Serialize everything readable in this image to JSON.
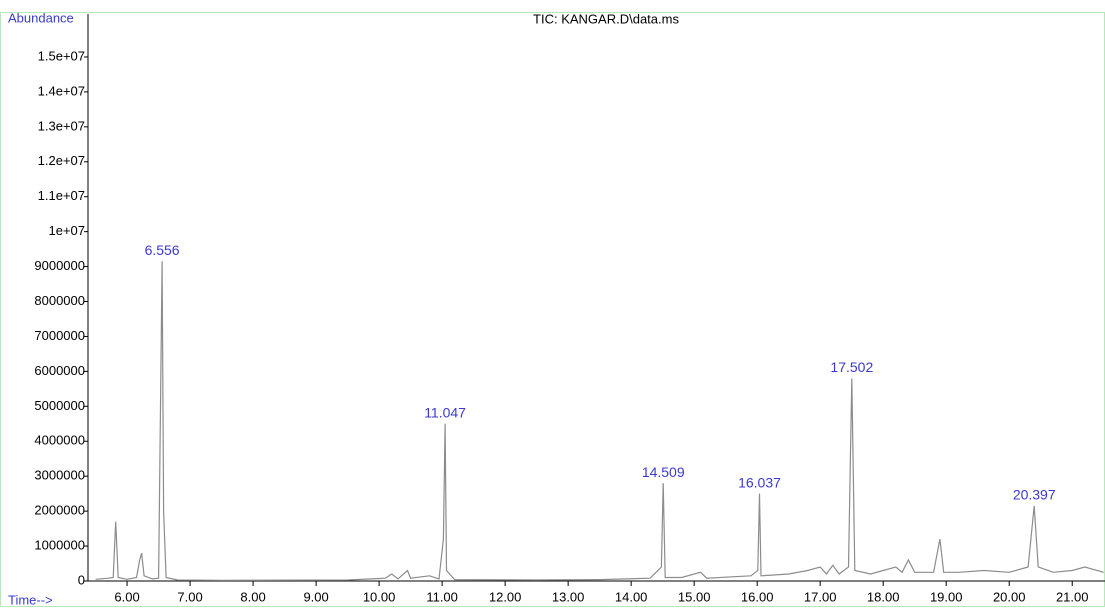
{
  "chart_data": {
    "type": "line",
    "title": "TIC: KANGAR.D\\data.ms",
    "y_label": "Abundance",
    "x_label": "Time-->",
    "color": "#8c8c8c",
    "x": [
      5.5,
      5.7,
      5.78,
      5.82,
      5.86,
      6.0,
      6.15,
      6.2,
      6.23,
      6.27,
      6.4,
      6.5,
      6.53,
      6.556,
      6.58,
      6.62,
      6.8,
      7.5,
      9.5,
      10.1,
      10.2,
      10.3,
      10.45,
      10.5,
      10.8,
      10.95,
      11.02,
      11.047,
      11.07,
      11.2,
      12.5,
      13.5,
      14.3,
      14.48,
      14.509,
      14.54,
      14.8,
      15.1,
      15.2,
      15.6,
      15.9,
      16.01,
      16.037,
      16.06,
      16.5,
      16.8,
      17.0,
      17.1,
      17.2,
      17.3,
      17.45,
      17.502,
      17.55,
      17.8,
      18.0,
      18.2,
      18.3,
      18.4,
      18.5,
      18.8,
      18.9,
      18.96,
      19.2,
      19.6,
      20.0,
      20.3,
      20.397,
      20.46,
      20.7,
      21.0,
      21.2,
      21.5
    ],
    "values": [
      50000,
      80000,
      100000,
      1700000,
      100000,
      50000,
      100000,
      600000,
      800000,
      150000,
      60000,
      80000,
      5000000,
      9150000,
      2000000,
      100000,
      30000,
      20000,
      30000,
      80000,
      200000,
      60000,
      300000,
      80000,
      150000,
      60000,
      1200000,
      4500000,
      300000,
      40000,
      30000,
      40000,
      80000,
      400000,
      2800000,
      100000,
      100000,
      250000,
      80000,
      120000,
      150000,
      300000,
      2500000,
      150000,
      200000,
      300000,
      400000,
      200000,
      450000,
      200000,
      400000,
      5800000,
      300000,
      200000,
      300000,
      400000,
      250000,
      600000,
      250000,
      250000,
      1200000,
      250000,
      250000,
      300000,
      250000,
      400000,
      2150000,
      400000,
      250000,
      300000,
      400000,
      250000
    ],
    "peaks": [
      {
        "x": 6.556,
        "y": 9150000
      },
      {
        "x": 11.047,
        "y": 4500000
      },
      {
        "x": 14.509,
        "y": 2800000
      },
      {
        "x": 16.037,
        "y": 2500000
      },
      {
        "x": 17.502,
        "y": 5800000
      },
      {
        "x": 20.397,
        "y": 2150000
      }
    ],
    "xlim": [
      5.38,
      21.52
    ],
    "ylim": [
      0,
      16230000
    ],
    "xticks": [
      {
        "value": 6,
        "label": "6.00"
      },
      {
        "value": 7,
        "label": "7.00"
      },
      {
        "value": 8,
        "label": "8.00"
      },
      {
        "value": 9,
        "label": "9.00"
      },
      {
        "value": 10,
        "label": "10.00"
      },
      {
        "value": 11,
        "label": "11.00"
      },
      {
        "value": 12,
        "label": "12.00"
      },
      {
        "value": 13,
        "label": "13.00"
      },
      {
        "value": 14,
        "label": "14.00"
      },
      {
        "value": 15,
        "label": "15.00"
      },
      {
        "value": 16,
        "label": "16.00"
      },
      {
        "value": 17,
        "label": "17.00"
      },
      {
        "value": 18,
        "label": "18.00"
      },
      {
        "value": 19,
        "label": "19.00"
      },
      {
        "value": 20,
        "label": "20.00"
      },
      {
        "value": 21,
        "label": "21.00"
      }
    ],
    "yticks": [
      0,
      1000000,
      2000000,
      3000000,
      4000000,
      5000000,
      6000000,
      7000000,
      8000000,
      9000000,
      {
        "value": 10000000,
        "label": "1e+07"
      },
      {
        "value": 11000000,
        "label": "1.1e+07"
      },
      {
        "value": 12000000,
        "label": "1.2e+07"
      },
      {
        "value": 13000000,
        "label": "1.3e+07"
      },
      {
        "value": 14000000,
        "label": "1.4e+07"
      },
      {
        "value": 15000000,
        "label": "1.5e+07"
      }
    ]
  }
}
